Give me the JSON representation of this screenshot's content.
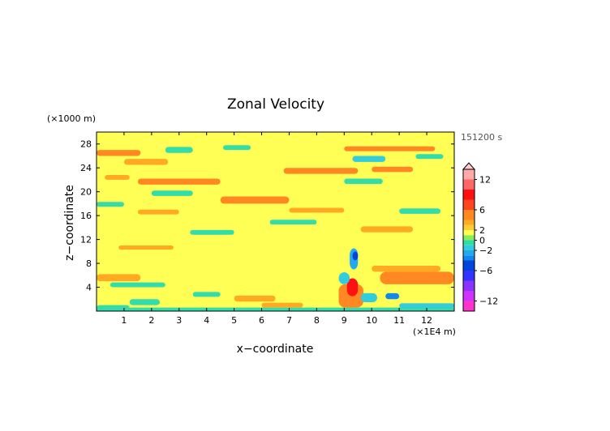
{
  "chart_data": {
    "type": "heatmap",
    "title": "Zonal Velocity",
    "xlabel": "x−coordinate",
    "ylabel": "z−coordinate",
    "x_unit": "(×1E4 m)",
    "y_unit": "(×1000 m)",
    "time_label": "151200 s",
    "xlim": [
      0,
      13
    ],
    "ylim": [
      0,
      30
    ],
    "x_ticks": [
      1,
      2,
      3,
      4,
      5,
      6,
      7,
      8,
      9,
      10,
      11,
      12
    ],
    "y_ticks": [
      4,
      8,
      12,
      16,
      20,
      24,
      28
    ],
    "background_value": 1,
    "colorbar": {
      "range": [
        -14,
        14
      ],
      "tick_values": [
        12,
        6,
        2,
        0,
        -2,
        -6,
        -12
      ],
      "tick_labels": [
        "12",
        "6",
        "2",
        "0",
        "−2",
        "−6",
        "−12"
      ],
      "arrow_top": true,
      "levels": [
        {
          "from": -14,
          "to": -12,
          "color": "#ff33cc"
        },
        {
          "from": -12,
          "to": -10,
          "color": "#cc33ff"
        },
        {
          "from": -10,
          "to": -8,
          "color": "#8833ff"
        },
        {
          "from": -8,
          "to": -6,
          "color": "#3333ff"
        },
        {
          "from": -6,
          "to": -4,
          "color": "#0044dd"
        },
        {
          "from": -4,
          "to": -3,
          "color": "#1188ee"
        },
        {
          "from": -3,
          "to": -2,
          "color": "#22aaee"
        },
        {
          "from": -2,
          "to": -1,
          "color": "#33ccdd"
        },
        {
          "from": -1,
          "to": 0,
          "color": "#33ddaa"
        },
        {
          "from": 0,
          "to": 1,
          "color": "#88ee55"
        },
        {
          "from": 1,
          "to": 2,
          "color": "#ffff55"
        },
        {
          "from": 2,
          "to": 3,
          "color": "#ffcc33"
        },
        {
          "from": 3,
          "to": 4,
          "color": "#ffaa22"
        },
        {
          "from": 4,
          "to": 6,
          "color": "#ff8822"
        },
        {
          "from": 6,
          "to": 8,
          "color": "#ff4422"
        },
        {
          "from": 8,
          "to": 10,
          "color": "#ff1111"
        },
        {
          "from": 10,
          "to": 12,
          "color": "#ff6666"
        },
        {
          "from": 12,
          "to": 14,
          "color": "#ffaaaa"
        }
      ]
    },
    "regions": [
      {
        "x": [
          0.0,
          13.0
        ],
        "y": [
          0.0,
          0.6
        ],
        "value": -1
      },
      {
        "x": [
          0.0,
          1.2
        ],
        "y": [
          0.0,
          1.0
        ],
        "value": -1
      },
      {
        "x": [
          0.0,
          1.6
        ],
        "y": [
          26.0,
          27.0
        ],
        "value": 4
      },
      {
        "x": [
          1.0,
          2.6
        ],
        "y": [
          24.5,
          25.5
        ],
        "value": 3
      },
      {
        "x": [
          2.5,
          3.5
        ],
        "y": [
          26.5,
          27.5
        ],
        "value": -1
      },
      {
        "x": [
          4.6,
          5.6
        ],
        "y": [
          27.0,
          27.8
        ],
        "value": -1
      },
      {
        "x": [
          0.3,
          1.2
        ],
        "y": [
          22.0,
          22.8
        ],
        "value": 3
      },
      {
        "x": [
          1.5,
          4.5
        ],
        "y": [
          21.2,
          22.2
        ],
        "value": 4
      },
      {
        "x": [
          2.0,
          3.5
        ],
        "y": [
          19.3,
          20.2
        ],
        "value": -1
      },
      {
        "x": [
          4.5,
          7.0
        ],
        "y": [
          18.0,
          19.2
        ],
        "value": 4
      },
      {
        "x": [
          0.0,
          1.0
        ],
        "y": [
          17.5,
          18.3
        ],
        "value": -1
      },
      {
        "x": [
          1.5,
          3.0
        ],
        "y": [
          16.2,
          17.0
        ],
        "value": 3
      },
      {
        "x": [
          6.8,
          9.5
        ],
        "y": [
          23.0,
          24.0
        ],
        "value": 4
      },
      {
        "x": [
          9.3,
          10.5
        ],
        "y": [
          25.0,
          26.0
        ],
        "value": -2
      },
      {
        "x": [
          9.0,
          12.3
        ],
        "y": [
          26.8,
          27.6
        ],
        "value": 4
      },
      {
        "x": [
          9.0,
          10.4
        ],
        "y": [
          21.3,
          22.2
        ],
        "value": -1
      },
      {
        "x": [
          10.0,
          11.5
        ],
        "y": [
          23.3,
          24.2
        ],
        "value": 4
      },
      {
        "x": [
          11.6,
          12.6
        ],
        "y": [
          25.5,
          26.3
        ],
        "value": -1
      },
      {
        "x": [
          7.0,
          9.0
        ],
        "y": [
          16.5,
          17.3
        ],
        "value": 3
      },
      {
        "x": [
          11.0,
          12.5
        ],
        "y": [
          16.3,
          17.2
        ],
        "value": -1
      },
      {
        "x": [
          9.6,
          11.5
        ],
        "y": [
          13.2,
          14.2
        ],
        "value": 3
      },
      {
        "x": [
          6.3,
          8.0
        ],
        "y": [
          14.5,
          15.3
        ],
        "value": -1
      },
      {
        "x": [
          3.4,
          5.0
        ],
        "y": [
          12.8,
          13.6
        ],
        "value": -1
      },
      {
        "x": [
          0.8,
          2.8
        ],
        "y": [
          10.3,
          11.0
        ],
        "value": 3
      },
      {
        "x": [
          0.0,
          1.6
        ],
        "y": [
          5.0,
          6.2
        ],
        "value": 3
      },
      {
        "x": [
          0.5,
          2.5
        ],
        "y": [
          4.0,
          4.8
        ],
        "value": -1
      },
      {
        "x": [
          3.5,
          4.5
        ],
        "y": [
          2.4,
          3.2
        ],
        "value": -1
      },
      {
        "x": [
          5.0,
          6.5
        ],
        "y": [
          1.6,
          2.6
        ],
        "value": 3
      },
      {
        "x": [
          6.0,
          7.5
        ],
        "y": [
          0.6,
          1.4
        ],
        "value": 3
      },
      {
        "x": [
          1.2,
          2.3
        ],
        "y": [
          1.0,
          2.0
        ],
        "value": -1
      },
      {
        "x": [
          10.3,
          13.0
        ],
        "y": [
          4.5,
          6.6
        ],
        "value": 5
      },
      {
        "x": [
          10.0,
          12.5
        ],
        "y": [
          6.6,
          7.6
        ],
        "value": 3
      },
      {
        "x": [
          8.8,
          9.7
        ],
        "y": [
          0.6,
          4.5
        ],
        "value": 5
      },
      {
        "x": [
          9.1,
          9.5
        ],
        "y": [
          2.5,
          5.5
        ],
        "value": 8
      },
      {
        "x": [
          9.2,
          9.5
        ],
        "y": [
          7.0,
          10.5
        ],
        "value": -3
      },
      {
        "x": [
          9.3,
          9.5
        ],
        "y": [
          8.5,
          10.0
        ],
        "value": -6
      },
      {
        "x": [
          8.8,
          9.2
        ],
        "y": [
          4.5,
          6.5
        ],
        "value": -2
      },
      {
        "x": [
          9.6,
          10.2
        ],
        "y": [
          1.5,
          3.0
        ],
        "value": -2
      },
      {
        "x": [
          10.5,
          11.0
        ],
        "y": [
          2.0,
          3.0
        ],
        "value": -4
      },
      {
        "x": [
          11.0,
          13.0
        ],
        "y": [
          0.5,
          1.3
        ],
        "value": -2
      }
    ]
  }
}
